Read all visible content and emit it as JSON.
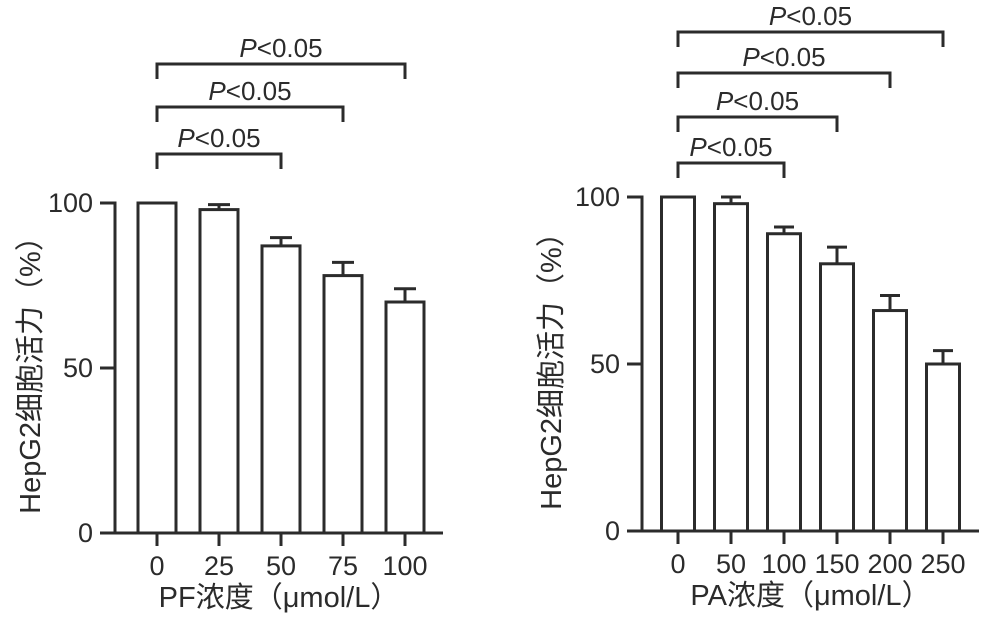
{
  "figure": {
    "background": "#ffffff",
    "ink_color": "#2b2b2b"
  },
  "chart_data": [
    {
      "id": "pf",
      "type": "bar",
      "title": "",
      "xlabel": "PF浓度（μmol/L）",
      "ylabel": "HepG2细胞活力（%）",
      "categories": [
        "0",
        "25",
        "50",
        "75",
        "100"
      ],
      "values": [
        100,
        98,
        87,
        78,
        70
      ],
      "errors": [
        0,
        1.5,
        2.5,
        4,
        4
      ],
      "yticks": [
        "0",
        "50",
        "100"
      ],
      "ytick_values": [
        0,
        50,
        100
      ],
      "ylim": [
        0,
        100
      ],
      "grid": false,
      "legend": "none",
      "bar_fill": "#ffffff",
      "bar_edge": "#2b2b2b",
      "significance": [
        {
          "label": "P<0.05",
          "from": 0,
          "to": 2
        },
        {
          "label": "P<0.05",
          "from": 0,
          "to": 3
        },
        {
          "label": "P<0.05",
          "from": 0,
          "to": 4
        }
      ]
    },
    {
      "id": "pa",
      "type": "bar",
      "title": "",
      "xlabel": "PA浓度（μmol/L）",
      "ylabel": "HepG2细胞活力（%）",
      "categories": [
        "0",
        "50",
        "100",
        "150",
        "200",
        "250"
      ],
      "values": [
        100,
        98,
        89,
        80,
        66,
        50
      ],
      "errors": [
        0,
        2,
        2,
        5,
        4.5,
        4
      ],
      "yticks": [
        "0",
        "50",
        "100"
      ],
      "ytick_values": [
        0,
        50,
        100
      ],
      "ylim": [
        0,
        100
      ],
      "grid": false,
      "legend": "none",
      "bar_fill": "#ffffff",
      "bar_edge": "#2b2b2b",
      "significance": [
        {
          "label": "P<0.05",
          "from": 0,
          "to": 2
        },
        {
          "label": "P<0.05",
          "from": 0,
          "to": 3
        },
        {
          "label": "P<0.05",
          "from": 0,
          "to": 4
        },
        {
          "label": "P<0.05",
          "from": 0,
          "to": 5
        }
      ]
    }
  ]
}
